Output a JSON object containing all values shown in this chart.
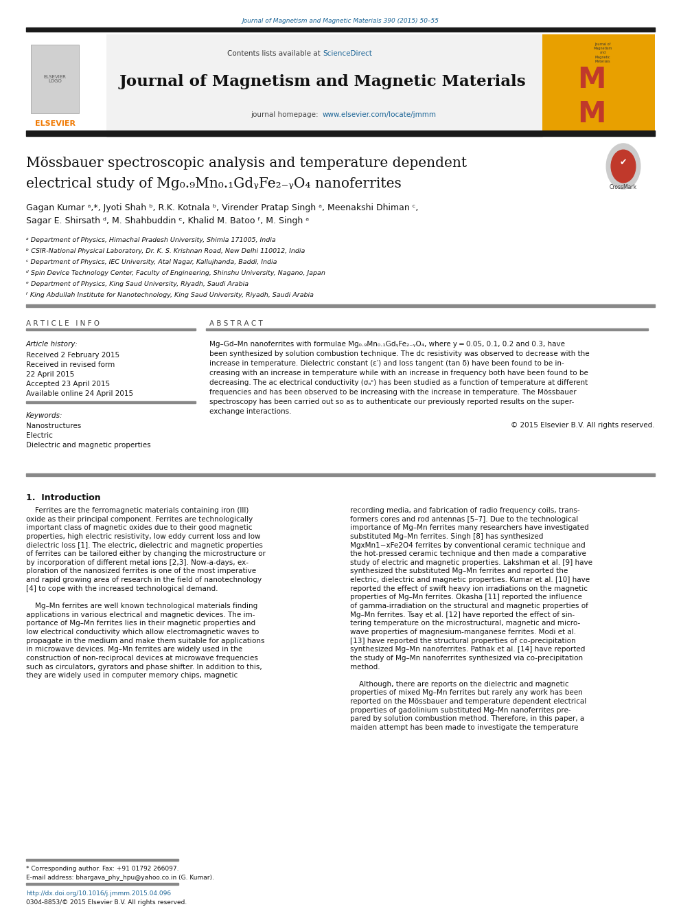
{
  "page_width": 9.92,
  "page_height": 13.23,
  "bg_color": "#ffffff",
  "top_journal_ref": "Journal of Magnetism and Magnetic Materials 390 (2015) 50–55",
  "journal_title": "Journal of Magnetism and Magnetic Materials",
  "article_title_line1": "Mössbauer spectroscopic analysis and temperature dependent",
  "article_title_line2": "electrical study of Mg₀.₉Mn₀.₁GdᵧFe₂₋ᵧO₄ nanoferrites",
  "authors_line1": "Gagan Kumar ᵃ,*, Jyoti Shah ᵇ, R.K. Kotnala ᵇ, Virender Pratap Singh ᵃ, Meenakshi Dhiman ᶜ,",
  "authors_line2": "Sagar E. Shirsath ᵈ, M. Shahbuddin ᵉ, Khalid M. Batoo ᶠ, M. Singh ᵃ",
  "affil_a": "ᵃ Department of Physics, Himachal Pradesh University, Shimla 171005, India",
  "affil_b": "ᵇ CSIR-National Physical Laboratory, Dr. K. S. Krishnan Road, New Delhi 110012, India",
  "affil_c": "ᶜ Department of Physics, IEC University, Atal Nagar, Kallujhanda, Baddi, India",
  "affil_d": "ᵈ Spin Device Technology Center, Faculty of Engineering, Shinshu University, Nagano, Japan",
  "affil_e": "ᵉ Department of Physics, King Saud University, Riyadh, Saudi Arabia",
  "affil_f": "ᶠ King Abdullah Institute for Nanotechnology, King Saud University, Riyadh, Saudi Arabia",
  "article_info_header": "A R T I C L E   I N F O",
  "abstract_header": "A B S T R A C T",
  "article_history": "Article history:",
  "received": "Received 2 February 2015",
  "revised": "Received in revised form",
  "revised2": "22 April 2015",
  "accepted": "Accepted 23 April 2015",
  "available": "Available online 24 April 2015",
  "keywords_header": "Keywords:",
  "keyword1": "Nanostructures",
  "keyword2": "Electric",
  "keyword3": "Dielectric and magnetic properties",
  "abstract_lines": [
    "Mg–Gd–Mn nanoferrites with formulae Mg₀.₉Mn₀.₁GdᵧFe₂₋ᵧO₄, where y = 0.05, 0.1, 0.2 and 0.3, have",
    "been synthesized by solution combustion technique. The dc resistivity was observed to decrease with the",
    "increase in temperature. Dielectric constant (ε′) and loss tangent (tan δ) have been found to be in-",
    "creasing with an increase in temperature while with an increase in frequency both have been found to be",
    "decreasing. The ac electrical conductivity (σₐᶜ) has been studied as a function of temperature at different",
    "frequencies and has been observed to be increasing with the increase in temperature. The Mössbauer",
    "spectroscopy has been carried out so as to authenticate our previously reported results on the super-",
    "exchange interactions."
  ],
  "copyright": "© 2015 Elsevier B.V. All rights reserved.",
  "intro_header": "1.  Introduction",
  "intro_col1": "    Ferrites are the ferromagnetic materials containing iron (III)\noxide as their principal component. Ferrites are technologically\nimportant class of magnetic oxides due to their good magnetic\nproperties, high electric resistivity, low eddy current loss and low\ndielectric loss [1]. The electric, dielectric and magnetic properties\nof ferrites can be tailored either by changing the microstructure or\nby incorporation of different metal ions [2,3]. Now-a-days, ex-\nploration of the nanosized ferrites is one of the most imperative\nand rapid growing area of research in the field of nanotechnology\n[4] to cope with the increased technological demand.\n\n    Mg–Mn ferrites are well known technological materials finding\napplications in various electrical and magnetic devices. The im-\nportance of Mg–Mn ferrites lies in their magnetic properties and\nlow electrical conductivity which allow electromagnetic waves to\npropagate in the medium and make them suitable for applications\nin microwave devices. Mg–Mn ferrites are widely used in the\nconstruction of non-reciprocal devices at microwave frequencies\nsuch as circulators, gyrators and phase shifter. In addition to this,\nthey are widely used in computer memory chips, magnetic",
  "intro_col2": "recording media, and fabrication of radio frequency coils, trans-\nformers cores and rod antennas [5–7]. Due to the technological\nimportance of Mg–Mn ferrites many researchers have investigated\nsubstituted Mg–Mn ferrites. Singh [8] has synthesized\nMgxMn1−xFe2O4 ferrites by conventional ceramic technique and\nthe hot-pressed ceramic technique and then made a comparative\nstudy of electric and magnetic properties. Lakshman et al. [9] have\nsynthesized the substituted Mg–Mn ferrites and reported the\nelectric, dielectric and magnetic properties. Kumar et al. [10] have\nreported the effect of swift heavy ion irradiations on the magnetic\nproperties of Mg–Mn ferrites. Okasha [11] reported the influence\nof gamma-irradiation on the structural and magnetic properties of\nMg–Mn ferrites. Tsay et al. [12] have reported the effect of sin-\ntering temperature on the microstructural, magnetic and micro-\nwave properties of magnesium-manganese ferrites. Modi et al.\n[13] have reported the structural properties of co-precipitation\nsynthesized Mg–Mn nanoferrites. Pathak et al. [14] have reported\nthe study of Mg–Mn nanoferrites synthesized via co-precipitation\nmethod.\n\n    Although, there are reports on the dielectric and magnetic\nproperties of mixed Mg–Mn ferrites but rarely any work has been\nreported on the Mössbauer and temperature dependent electrical\nproperties of gadolinium substituted Mg–Mn nanoferrites pre-\npared by solution combustion method. Therefore, in this paper, a\nmaiden attempt has been made to investigate the temperature",
  "footnote_star": "* Corresponding author. Fax: +91 01792 266097.",
  "footnote_email": "E-mail address: bhargava_phy_hpu@yahoo.co.in (G. Kumar).",
  "footnote_doi": "http://dx.doi.org/10.1016/j.jmmm.2015.04.096",
  "footnote_issn": "0304-8853/© 2015 Elsevier B.V. All rights reserved.",
  "link_color": "#1a6496",
  "orange_color": "#f07800",
  "light_gray": "#f2f2f2",
  "journal_logo_bg": "#e8a000",
  "dark_rule": "#1a1a1a",
  "gray_rule": "#888888"
}
